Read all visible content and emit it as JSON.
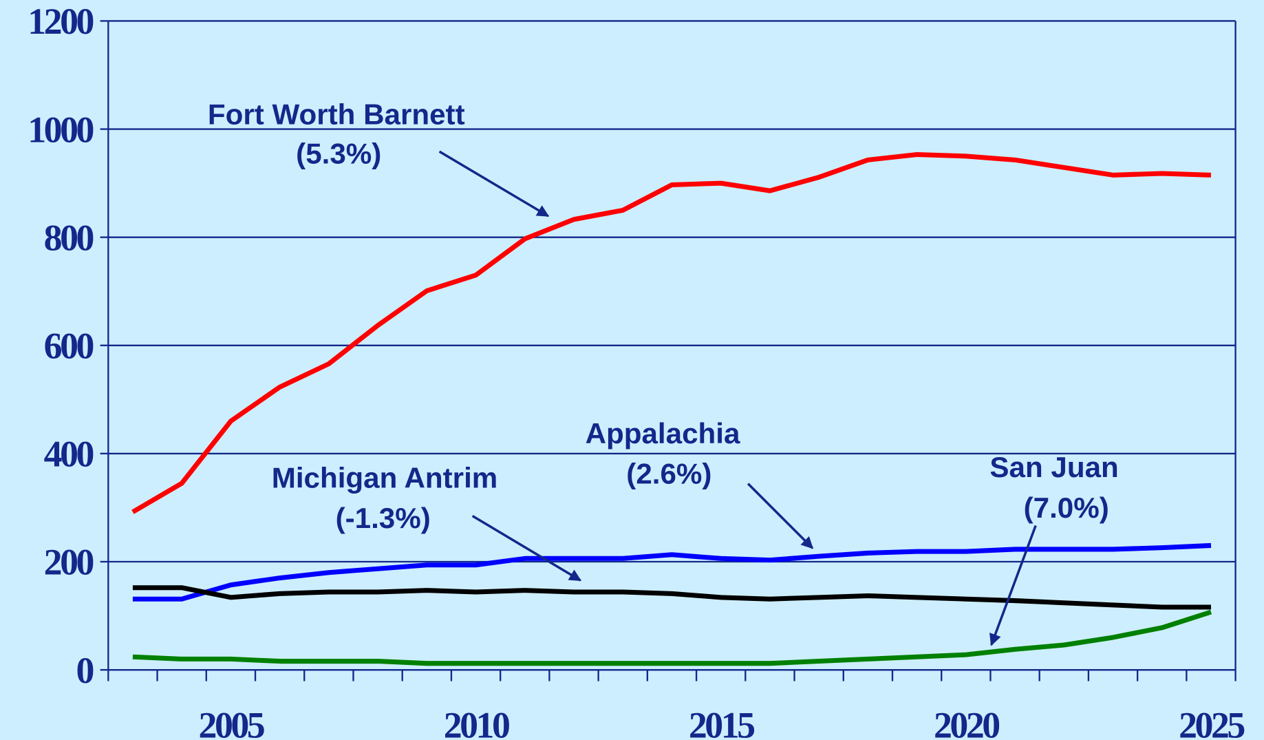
{
  "chart_data": {
    "type": "line",
    "x": [
      2003,
      2004,
      2005,
      2006,
      2007,
      2008,
      2009,
      2010,
      2011,
      2012,
      2013,
      2014,
      2015,
      2016,
      2017,
      2018,
      2019,
      2020,
      2021,
      2022,
      2023,
      2024,
      2025
    ],
    "series": [
      {
        "name": "Fort Worth Barnett",
        "color": "#ff0000",
        "values": [
          292,
          345,
          460,
          523,
          566,
          637,
          701,
          730,
          797,
          833,
          850,
          897,
          900,
          886,
          911,
          943,
          953,
          950,
          943,
          929,
          915,
          918,
          915
        ]
      },
      {
        "name": "Appalachia",
        "color": "#0000ff",
        "values": [
          131,
          131,
          157,
          170,
          180,
          187,
          194,
          194,
          206,
          206,
          206,
          213,
          206,
          203,
          210,
          216,
          219,
          219,
          223,
          223,
          223,
          226,
          230
        ]
      },
      {
        "name": "Michigan Antrim",
        "color": "#000000",
        "values": [
          152,
          152,
          134,
          141,
          144,
          144,
          147,
          144,
          147,
          144,
          144,
          141,
          134,
          131,
          134,
          137,
          134,
          131,
          128,
          124,
          120,
          116,
          116
        ]
      },
      {
        "name": "San Juan",
        "color": "#008000",
        "values": [
          24,
          20,
          20,
          16,
          16,
          16,
          12,
          12,
          12,
          12,
          12,
          12,
          12,
          12,
          16,
          20,
          24,
          28,
          38,
          46,
          60,
          78,
          107
        ]
      }
    ],
    "annotations": [
      {
        "name": "Fort Worth Barnett",
        "rate": "(5.3%)"
      },
      {
        "name": "Appalachia",
        "rate": "(2.6%)"
      },
      {
        "name": "Michigan Antrim",
        "rate": "(-1.3%)"
      },
      {
        "name": "San Juan",
        "rate": "(7.0%)"
      }
    ],
    "xlim": [
      2002.5,
      2025.5
    ],
    "xticks": [
      2005,
      2010,
      2015,
      2020,
      2025
    ],
    "ylim": [
      0,
      1200
    ],
    "yticks": [
      0,
      200,
      400,
      600,
      800,
      1000,
      1200
    ],
    "grid": true
  }
}
